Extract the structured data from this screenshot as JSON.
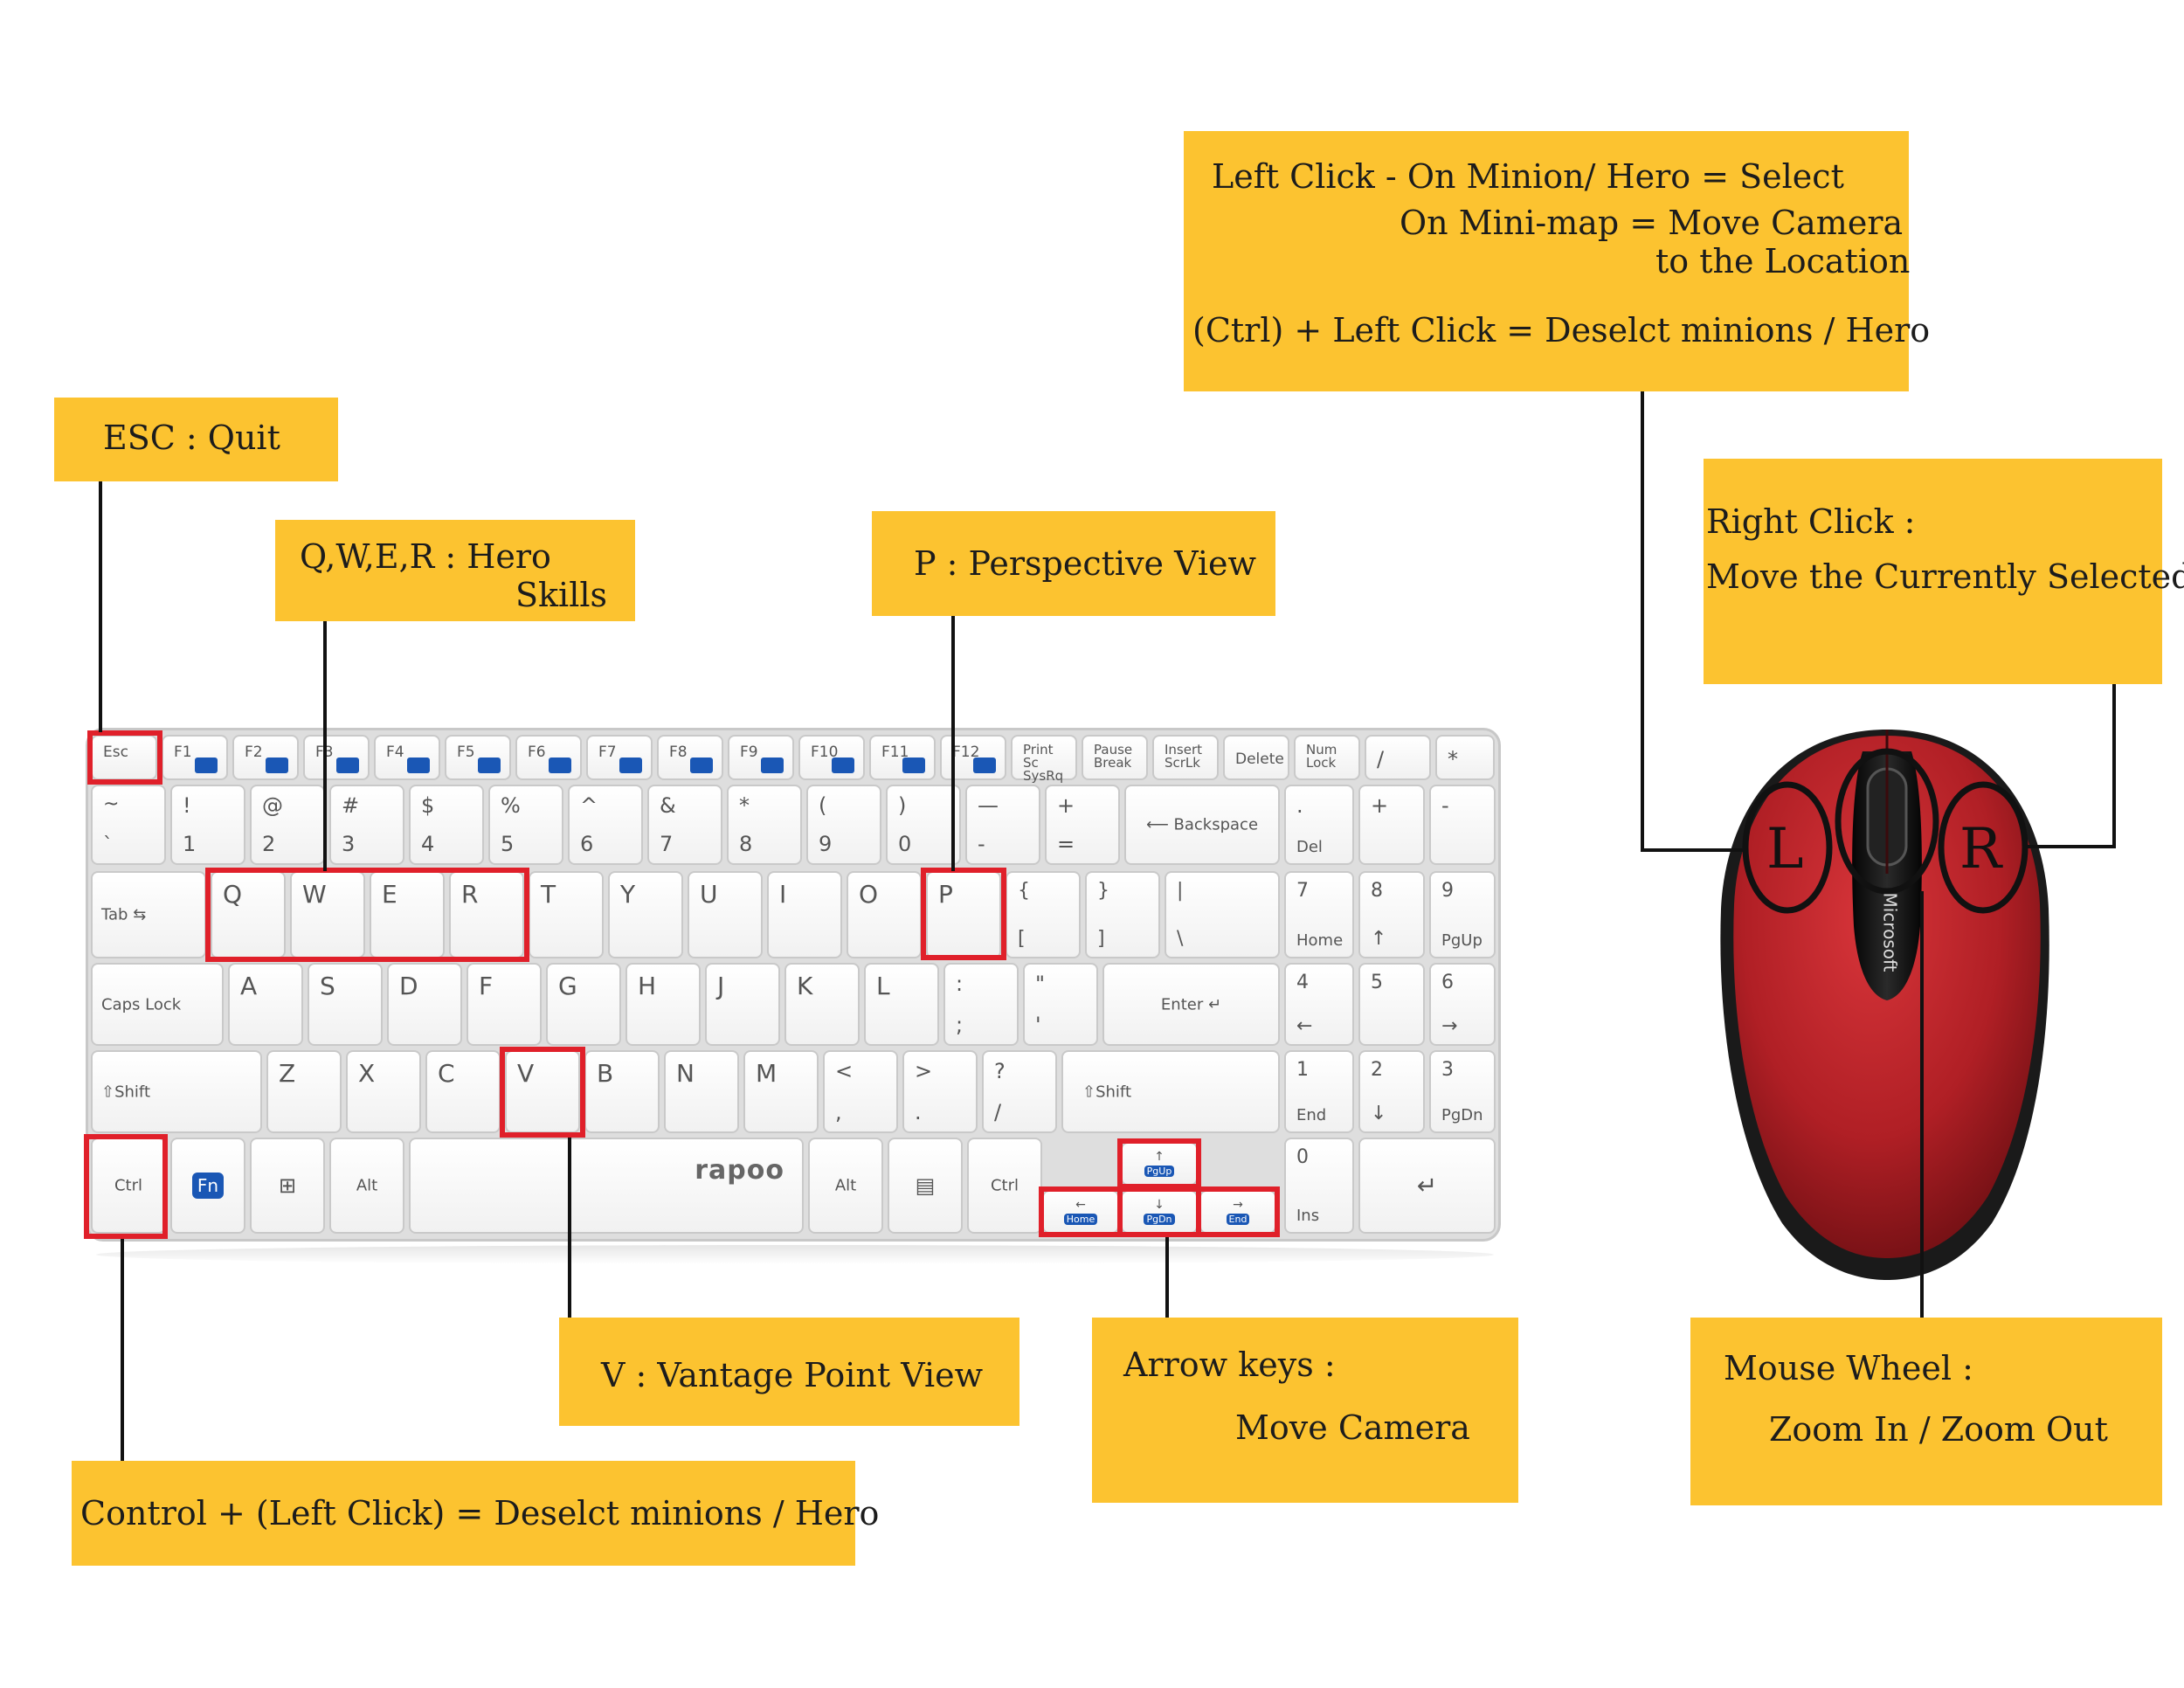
{
  "notes": {
    "left_click": {
      "line1": "Left Click - On Minion/ Hero = Select",
      "line2": "On Mini-map = Move Camera",
      "line3": "to the Location",
      "line4": "(Ctrl) + Left Click = Deselct minions / Hero"
    },
    "esc": "ESC : Quit",
    "qwer": {
      "line1": "Q,W,E,R : Hero",
      "line2": "Skills"
    },
    "p": "P : Perspective View",
    "right_click": {
      "line1": "Right Click :",
      "line2": "Move the Currently Selected"
    },
    "v": "V : Vantage Point View",
    "arrow": {
      "line1": "Arrow keys :",
      "line2": "Move Camera"
    },
    "mouse_wheel": {
      "line1": "Mouse Wheel :",
      "line2": "Zoom In / Zoom Out"
    },
    "control": "Control + (Left Click) = Deselct minions / Hero"
  },
  "keyboard": {
    "brand": "rapoo",
    "fn_row": [
      "Esc",
      "F1",
      "F2",
      "F3",
      "F4",
      "F5",
      "F6",
      "F7",
      "F8",
      "F9",
      "F10",
      "F11",
      "F12",
      "Print Sc SysRq",
      "Pause Break",
      "Insert ScrLk",
      "Delete",
      "Num Lock",
      "/",
      "*"
    ],
    "num_row": [
      [
        "~",
        "`"
      ],
      [
        "!",
        "1"
      ],
      [
        "@",
        "2"
      ],
      [
        "#",
        "3"
      ],
      [
        "$",
        "4"
      ],
      [
        "%",
        "5"
      ],
      [
        "^",
        "6"
      ],
      [
        "&",
        "7"
      ],
      [
        "*",
        "8"
      ],
      [
        "(",
        "9"
      ],
      [
        ")",
        "0"
      ],
      [
        "—",
        "-"
      ],
      [
        "+",
        "="
      ]
    ],
    "backspace": "Backspace",
    "tab": "Tab",
    "letters_row1": [
      "Q",
      "W",
      "E",
      "R",
      "T",
      "Y",
      "U",
      "I",
      "O",
      "P"
    ],
    "brackets": [
      [
        "{",
        "["
      ],
      [
        "}",
        "]"
      ],
      [
        "|",
        "\\"
      ]
    ],
    "caps": "Caps Lock",
    "letters_row2": [
      "A",
      "S",
      "D",
      "F",
      "G",
      "H",
      "J",
      "K",
      "L"
    ],
    "semicolon": [
      ":",
      ";"
    ],
    "quote": [
      "\"",
      "'"
    ],
    "enter": "Enter",
    "shift": "Shift",
    "letters_row3": [
      "Z",
      "X",
      "C",
      "V",
      "B",
      "N",
      "M"
    ],
    "punct_row3": [
      [
        "<",
        ","
      ],
      [
        ">",
        "."
      ],
      [
        "?",
        "/"
      ]
    ],
    "bottom": {
      "ctrl": "Ctrl",
      "fn": "Fn",
      "alt": "Alt"
    },
    "arrows": {
      "up": "PgUp",
      "left": "Home",
      "down": "PgDn",
      "right": "End"
    },
    "numpad": {
      "dot": [
        ".",
        "Del"
      ],
      "plus": "+",
      "minus": "-",
      "r7": [
        "7",
        "Home"
      ],
      "r8": "8",
      "r9": [
        "9",
        "PgUp"
      ],
      "r4": "4",
      "r5": "5",
      "r6": "6",
      "r1": [
        "1",
        "End"
      ],
      "r2": "2",
      "r3": [
        "3",
        "PgDn"
      ],
      "r0": [
        "0",
        "Ins"
      ]
    }
  },
  "mouse": {
    "brand": "Microsoft",
    "left_label": "L",
    "right_label": "R"
  }
}
